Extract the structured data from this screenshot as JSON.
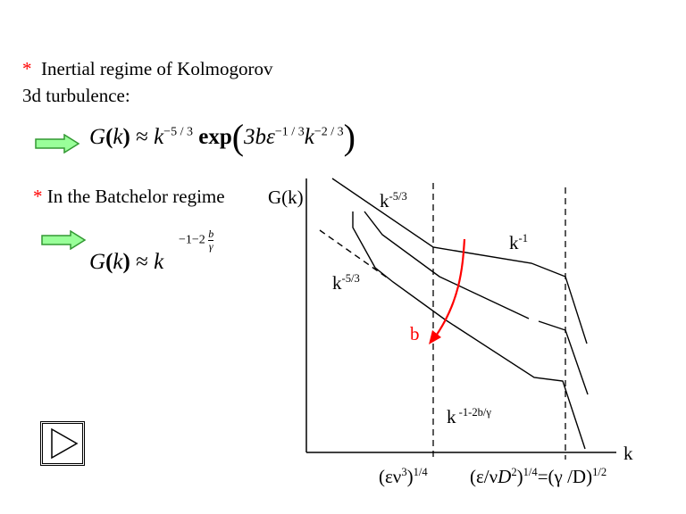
{
  "bullet1": {
    "star": "*",
    "line1": "Inertial regime of Kolmogorov",
    "line2": "3d turbulence:"
  },
  "formula1": {
    "G": "G",
    "k_arg": "k",
    "approx": "≈",
    "k": "k",
    "exp1": "−5 / 3",
    "expword": "exp",
    "inner_3b": "3b",
    "epsilon": "ε",
    "exp2": "−1 / 3",
    "k2": "k",
    "exp3": "−2 / 3"
  },
  "bullet2": {
    "star": "*",
    "text": "In the Batchelor regime"
  },
  "formula2": {
    "G": "G",
    "k_arg": "k",
    "approx": "≈",
    "k": "k",
    "exp_prefix": "−1−2",
    "frac_num": "b",
    "frac_den": "γ"
  },
  "graph": {
    "y_label": "G(k)",
    "x_label": "k",
    "label_k53_top": {
      "base": "k",
      "sup": "-5/3"
    },
    "label_k53_left": {
      "base": "k",
      "sup": "-5/3"
    },
    "label_k1": {
      "base": "k",
      "sup": "-1"
    },
    "label_batchelor": {
      "base": "k",
      "sup": " -1-2b/γ"
    },
    "arrow_label": "b",
    "tick1": {
      "pre": "(εν",
      "sup1": "3",
      "mid": ")",
      "sup2": "1/4"
    },
    "tick2": {
      "a": "(ε/ν",
      "b": "D",
      "sup1": "2",
      "c": ")",
      "sup2": "1/4",
      "d": "=(γ /D)",
      "sup3": "1/2"
    }
  },
  "colors": {
    "accent": "#ff0000",
    "arrow_fill": "#99ff99",
    "arrow_stroke": "#339933"
  },
  "icons": {
    "bullet_arrow": "green-right-arrow-icon",
    "play": "play-triangle-icon"
  }
}
